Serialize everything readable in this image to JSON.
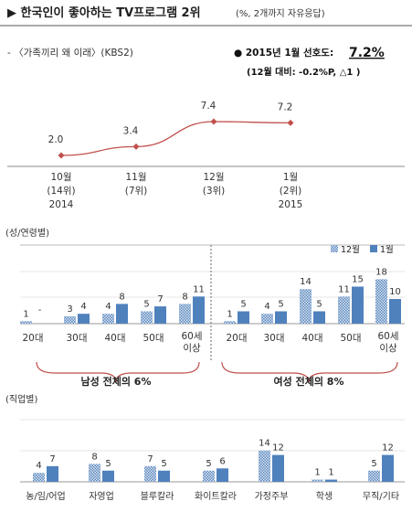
{
  "header": {
    "title": "▶ 한국인이 좋아하는 TV프로그램 2위",
    "title_note": "(%, 2개까지 자유응답)",
    "program": "- 〈가족끼리 왜 이래〉(KBS2)",
    "stat_label": "● 2015년 1월 선호도:",
    "stat_value": "7.2%",
    "stat_change": "(12월 대비: -0.2%P, △1 )"
  },
  "gender_title": "(성/연령별)",
  "job_title": "(직업별)",
  "male_summary": "남성 전체의 6%",
  "female_summary": "여성 전체의 8%",
  "colors": {
    "trend_line": "#c0504d",
    "series_dec": "#9bbbd9",
    "series_jan": "#4f81bd",
    "bracket": "#c0504d"
  },
  "chart_data": [
    {
      "type": "line",
      "x": [
        "10월 (14위) 2014",
        "11월 (7위)",
        "12월 (3위)",
        "1월 (2위) 2015"
      ],
      "x_lines": [
        [
          "10월",
          "(14위)",
          "2014"
        ],
        [
          "11월",
          "(7위)",
          ""
        ],
        [
          "12월",
          "(3위)",
          ""
        ],
        [
          "1월",
          "(2위)",
          "2015"
        ]
      ],
      "values": [
        2.0,
        3.4,
        7.4,
        7.2
      ],
      "labels": [
        "2.0",
        "3.4",
        "7.4",
        "7.2"
      ]
    },
    {
      "type": "bar",
      "legend": [
        "12월",
        "1월"
      ],
      "legend_position": "top-right",
      "male": {
        "categories": [
          "20대",
          "30대",
          "40대",
          "50대",
          "60세 이상"
        ],
        "dec": [
          1,
          3,
          4,
          5,
          8
        ],
        "jan": [
          null,
          4,
          8,
          7,
          11
        ],
        "dec_labels": [
          "1",
          "3",
          "4",
          "5",
          "8"
        ],
        "jan_labels": [
          "-",
          "4",
          "8",
          "7",
          "11"
        ]
      },
      "female": {
        "categories": [
          "20대",
          "30대",
          "40대",
          "50대",
          "60세 이상"
        ],
        "dec": [
          1,
          4,
          14,
          11,
          18
        ],
        "jan": [
          5,
          5,
          5,
          15,
          10
        ],
        "dec_labels": [
          "1",
          "4",
          "14",
          "11",
          "18"
        ],
        "jan_labels": [
          "5",
          "5",
          "5",
          "15",
          "10"
        ]
      }
    },
    {
      "type": "bar",
      "categories": [
        "농/임/어업",
        "자영업",
        "블루칼라",
        "화이트칼라",
        "가정주부",
        "학생",
        "무직/기타"
      ],
      "dec": [
        4,
        8,
        7,
        5,
        14,
        1,
        5
      ],
      "jan": [
        7,
        5,
        5,
        6,
        12,
        1,
        12
      ],
      "dec_labels": [
        "4",
        "8",
        "7",
        "5",
        "14",
        "1",
        "5"
      ],
      "jan_labels": [
        "7",
        "5",
        "5",
        "6",
        "12",
        "1",
        "12"
      ]
    }
  ]
}
